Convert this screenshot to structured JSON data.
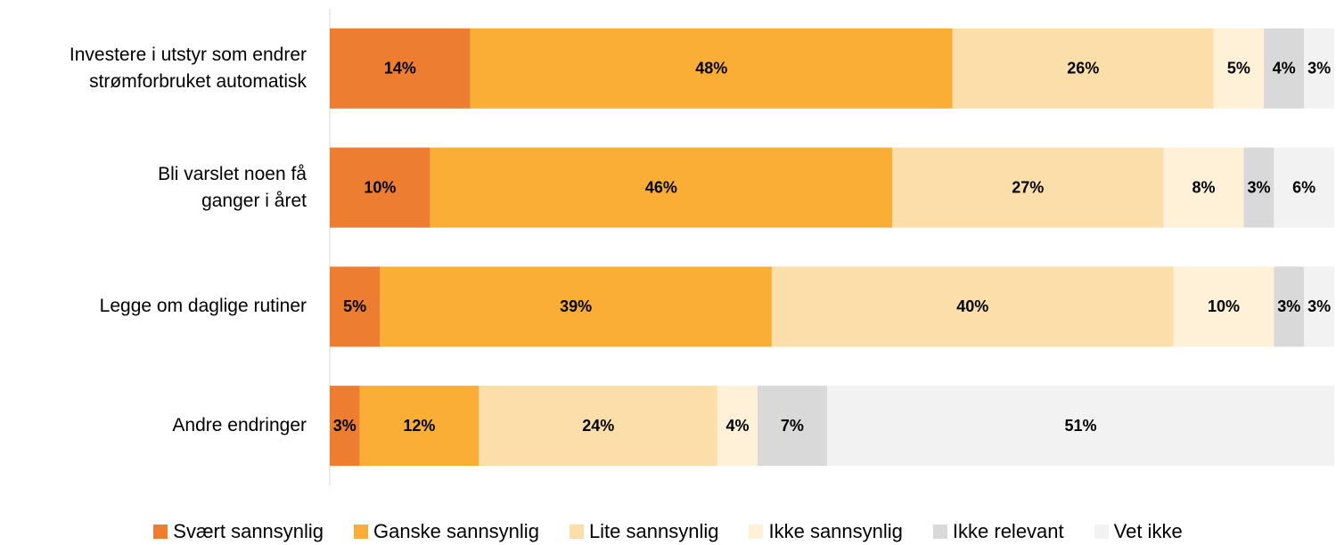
{
  "chart_data": {
    "type": "stacked_bar_horizontal",
    "categories": [
      "Investere i utstyr som endrer\nstrømforbruket automatisk",
      "Bli varslet noen få\nganger i året",
      "Legge om daglige rutiner",
      "Andre endringer"
    ],
    "series": [
      {
        "name": "Svært sannsynlig",
        "color": "#ED7D31",
        "values": [
          14,
          10,
          5,
          3
        ],
        "value_labels": [
          "14%",
          "10%",
          "5%",
          "3%"
        ]
      },
      {
        "name": "Ganske sannsynlig",
        "color": "#FAAE36",
        "values": [
          48,
          46,
          39,
          12
        ],
        "value_labels": [
          "48%",
          "46%",
          "39%",
          "12%"
        ]
      },
      {
        "name": "Lite sannsynlig",
        "color": "#FCDEAB",
        "values": [
          26,
          27,
          40,
          24
        ],
        "value_labels": [
          "26%",
          "27%",
          "40%",
          "24%"
        ]
      },
      {
        "name": "Ikke sannsynlig",
        "color": "#FEF1D8",
        "values": [
          5,
          8,
          10,
          4
        ],
        "value_labels": [
          "5%",
          "8%",
          "10%",
          "4%"
        ]
      },
      {
        "name": "Ikke relevant",
        "color": "#D9D9D9",
        "values": [
          4,
          3,
          3,
          7
        ],
        "value_labels": [
          "4%",
          "3%",
          "3%",
          "7%"
        ]
      },
      {
        "name": "Vet ikke",
        "color": "#F2F2F2",
        "values": [
          3,
          6,
          3,
          51
        ],
        "value_labels": [
          "3%",
          "6%",
          "3%",
          "51%"
        ]
      }
    ],
    "legend": "bottom"
  }
}
